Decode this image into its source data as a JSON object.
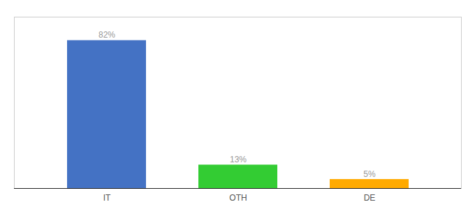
{
  "chart_data": {
    "type": "bar",
    "categories": [
      "IT",
      "OTH",
      "DE"
    ],
    "values": [
      82,
      13,
      5
    ],
    "value_labels": [
      "82%",
      "13%",
      "5%"
    ],
    "colors": [
      "#4472c4",
      "#33cc33",
      "#ffaa00"
    ],
    "ylim": [
      0,
      95
    ],
    "data_labels": true,
    "tick_labels": "x"
  }
}
